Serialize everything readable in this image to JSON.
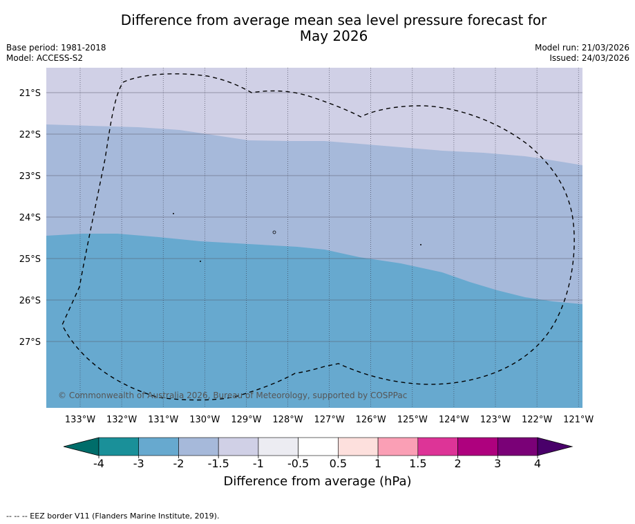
{
  "title_line1": "Difference from average mean sea level pressure forecast for",
  "title_line2": "May 2026",
  "base_period": "Base period: 1981-2018",
  "model": "Model: ACCESS-S2",
  "model_run": "Model run: 21/03/2026",
  "issued": "Issued: 24/03/2026",
  "credit": "© Commonwealth of Australia 2026, Bureau of Meteorology, supported by COSPPac",
  "footnote": "--  --  -- EEZ border V11 (Flanders Marine Institute, 2019).",
  "colorbar": {
    "label": "Difference from average (hPa)",
    "ticks": [
      "-4",
      "-3",
      "-2",
      "-1.5",
      "-1",
      "-0.5",
      "0.5",
      "1",
      "1.5",
      "2",
      "3",
      "4"
    ],
    "colors": [
      "#1a9099",
      "#67a9cf",
      "#a6b9da",
      "#d0d0e6",
      "#ececf2",
      "#ffffff",
      "#fde0dd",
      "#fa9fb5",
      "#dd3497",
      "#ae017e",
      "#7a0177"
    ],
    "under_color": "#006d6a",
    "over_color": "#49006a"
  },
  "map": {
    "lon_labels": [
      "133°W",
      "132°W",
      "131°W",
      "130°W",
      "129°W",
      "128°W",
      "127°W",
      "126°W",
      "125°W",
      "124°W",
      "123°W",
      "122°W",
      "121°W"
    ],
    "lat_labels": [
      "21°S",
      "22°S",
      "23°S",
      "24°S",
      "25°S",
      "26°S",
      "27°S"
    ],
    "region_colors": {
      "band_low": "#d0d0e6",
      "band_mid": "#a6b9da",
      "band_high": "#67a9cf"
    }
  }
}
